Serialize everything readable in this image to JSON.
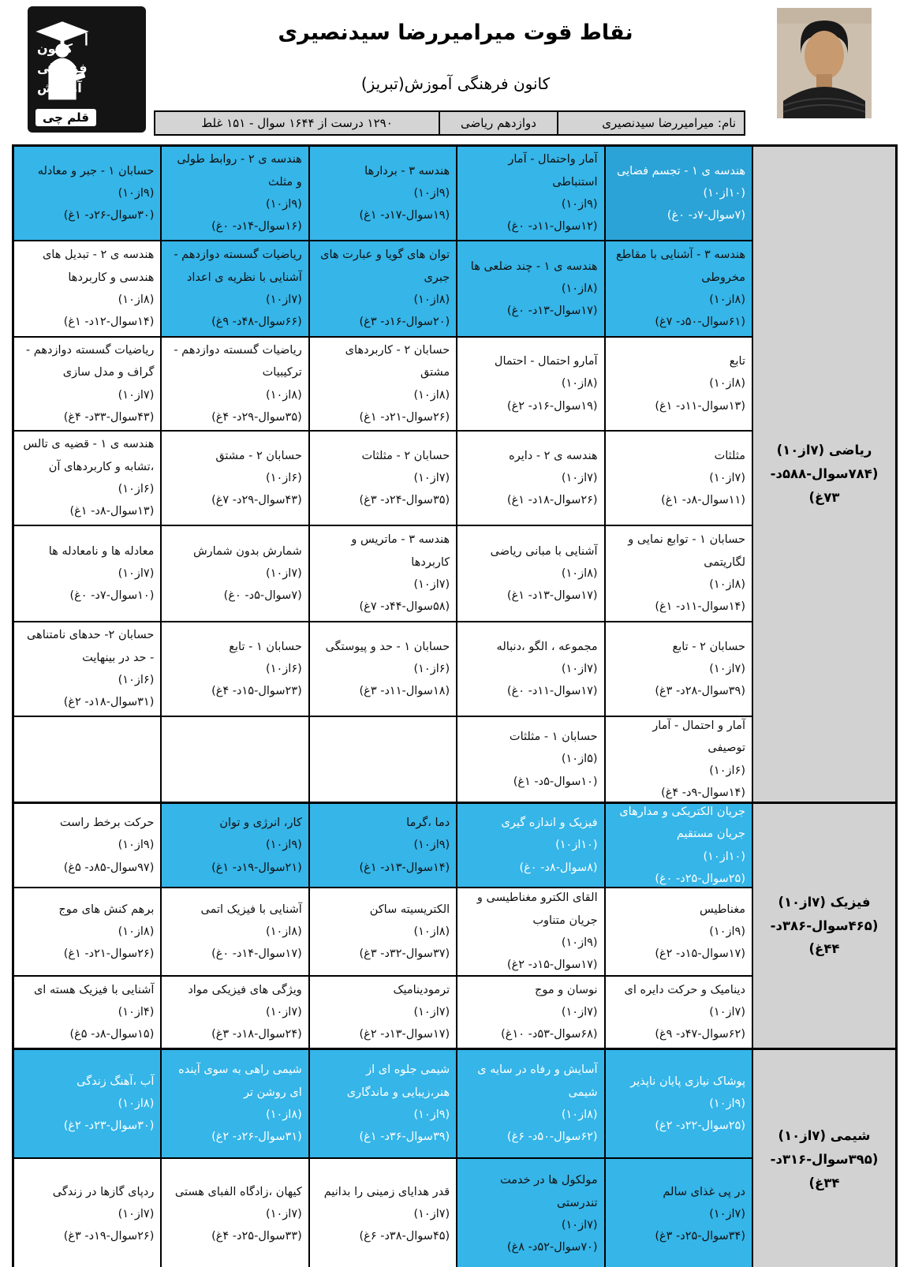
{
  "page": {
    "title": "نقاط قوت میرامیررضا سیدنصیری",
    "subtitle": "کانون فرهنگی آموزش(تبریز)"
  },
  "logo": {
    "org_lines": [
      "کانون",
      "فرهنگی",
      "آموزش"
    ],
    "brand": "قلم چی"
  },
  "info_bar": {
    "name": "نام: میرامیررضا سیدنصیری",
    "grade": "دوازدهم ریاضی",
    "summary": "۱۲۹۰ درست از ۱۶۴۴ سوال - ۱۵۱ غلط"
  },
  "colors": {
    "highlight": "#35b5e8",
    "highlight_dark": "#2ba3d7",
    "section_bg": "#d2d2d2",
    "info_bg": "#d4d4d4",
    "border": "#000000"
  },
  "sections": [
    {
      "id": "math",
      "label": "ریاضی (۷از۱۰)",
      "label_stats": "(۷۸۴سوال-۵۸۸د- ۷۳غ)",
      "rows": [
        [
          {
            "title": "هندسه ی ۱ - تجسم فضایی",
            "score": "(۱۰از۱۰)",
            "stats": "(۷سوال-۷د- ۰غ)",
            "hl": true,
            "dark": true,
            "white_text": true
          },
          {
            "title": "آمار واحتمال - آمار استنباطی",
            "score": "(۹از۱۰)",
            "stats": "(۱۲سوال-۱۱د- ۰غ)",
            "hl": true
          },
          {
            "title": "هندسه ۳ - بردارها",
            "score": "(۹از۱۰)",
            "stats": "(۱۹سوال-۱۷د- ۱غ)",
            "hl": true
          },
          {
            "title": "هندسه ی ۲ - روابط طولی و مثلث",
            "score": "(۹از۱۰)",
            "stats": "(۱۶سوال-۱۴د- ۰غ)",
            "hl": true
          },
          {
            "title": "حسابان ۱ - جبر و معادله",
            "score": "(۹از۱۰)",
            "stats": "(۳۰سوال-۲۶د- ۱غ)",
            "hl": true
          }
        ],
        [
          {
            "title": "هندسه ۳ - آشنایی با مقاطع مخروطی",
            "score": "(۸از۱۰)",
            "stats": "(۶۱سوال-۵۰د- ۷غ)",
            "hl": true
          },
          {
            "title": "هندسه ی ۱ - چند ضلعی ها",
            "score": "(۸از۱۰)",
            "stats": "(۱۷سوال-۱۳د- ۰غ)",
            "hl": true
          },
          {
            "title": "توان های گویا و عبارت های جبری",
            "score": "(۸از۱۰)",
            "stats": "(۲۰سوال-۱۶د- ۳غ)",
            "hl": true
          },
          {
            "title": "ریاضیات گسسته دوازدهم - آشنایی با نظریه ی اعداد",
            "score": "(۷از۱۰)",
            "stats": "(۶۶سوال-۴۸د- ۹غ)",
            "hl": true
          },
          {
            "title": "هندسه ی ۲ - تبدیل های هندسی و کاربردها",
            "score": "(۸از۱۰)",
            "stats": "(۱۴سوال-۱۲د- ۱غ)"
          }
        ],
        [
          {
            "title": "تابع",
            "score": "(۸از۱۰)",
            "stats": "(۱۳سوال-۱۱د- ۱غ)"
          },
          {
            "title": "آمارو احتمال - احتمال",
            "score": "(۸از۱۰)",
            "stats": "(۱۹سوال-۱۶د- ۲غ)"
          },
          {
            "title": "حسابان ۲ - کاربردهای مشتق",
            "score": "(۸از۱۰)",
            "stats": "(۲۶سوال-۲۱د- ۱غ)"
          },
          {
            "title": "ریاضیات گسسته دوازدهم - ترکیبیات",
            "score": "(۸از۱۰)",
            "stats": "(۳۵سوال-۲۹د- ۴غ)"
          },
          {
            "title": "ریاضیات گسسته دوازدهم - گراف و مدل سازی",
            "score": "(۷از۱۰)",
            "stats": "(۴۳سوال-۳۳د- ۴غ)"
          }
        ],
        [
          {
            "title": "مثلثات",
            "score": "(۷از۱۰)",
            "stats": "(۱۱سوال-۸د- ۱غ)"
          },
          {
            "title": "هندسه ی ۲ - دایره",
            "score": "(۷از۱۰)",
            "stats": "(۲۶سوال-۱۸د- ۱غ)"
          },
          {
            "title": "حسابان ۲ - مثلثات",
            "score": "(۷از۱۰)",
            "stats": "(۳۵سوال-۲۴د- ۳غ)"
          },
          {
            "title": "حسابان ۲ - مشتق",
            "score": "(۶از۱۰)",
            "stats": "(۴۳سوال-۲۹د- ۷غ)"
          },
          {
            "title": "هندسه ی ۱ - قضیه ی تالس ،تشابه و کاربردهای آن",
            "score": "(۶از۱۰)",
            "stats": "(۱۳سوال-۸د- ۱غ)"
          }
        ],
        [
          {
            "title": "حسابان ۱ - توابع نمایی و لگاریتمی",
            "score": "(۸از۱۰)",
            "stats": "(۱۴سوال-۱۱د- ۱غ)"
          },
          {
            "title": "آشنایی با مبانی ریاضی",
            "score": "(۸از۱۰)",
            "stats": "(۱۷سوال-۱۳د- ۱غ)"
          },
          {
            "title": "هندسه ۳ - ماتریس و کاربردها",
            "score": "(۷از۱۰)",
            "stats": "(۵۸سوال-۴۴د- ۷غ)"
          },
          {
            "title": "شمارش بدون شمارش",
            "score": "(۷از۱۰)",
            "stats": "(۷سوال-۵د- ۰غ)"
          },
          {
            "title": "معادله ها و نامعادله ها",
            "score": "(۷از۱۰)",
            "stats": "(۱۰سوال-۷د- ۰غ)"
          }
        ],
        [
          {
            "title": "حسابان ۲ - تابع",
            "score": "(۷از۱۰)",
            "stats": "(۳۹سوال-۲۸د- ۳غ)"
          },
          {
            "title": "مجموعه ، الگو ،دنباله",
            "score": "(۷از۱۰)",
            "stats": "(۱۷سوال-۱۱د- ۰غ)"
          },
          {
            "title": "حسابان ۱ - حد و پیوستگی",
            "score": "(۶از۱۰)",
            "stats": "(۱۸سوال-۱۱د- ۳غ)"
          },
          {
            "title": "حسابان ۱ - تابع",
            "score": "(۶از۱۰)",
            "stats": "(۲۳سوال-۱۵د- ۴غ)"
          },
          {
            "title": "حسابان ۲- حدهای نامتناهی - حد در بینهایت",
            "score": "(۶از۱۰)",
            "stats": "(۳۱سوال-۱۸د- ۲غ)"
          }
        ],
        [
          {
            "title": "آمار و احتمال - آمار توصیفی",
            "score": "(۶از۱۰)",
            "stats": "(۱۴سوال-۹د- ۴غ)"
          },
          {
            "title": "حسابان ۱ - مثلثات",
            "score": "(۵از۱۰)",
            "stats": "(۱۰سوال-۵د- ۱غ)"
          },
          null,
          null,
          null
        ]
      ]
    },
    {
      "id": "physics",
      "label": "فیزیک (۷از۱۰)",
      "label_stats": "(۴۶۵سوال-۳۸۶د- ۴۴غ)",
      "rows": [
        [
          {
            "title": "جریان الکتریکی و مدارهای جریان مستقیم",
            "score": "(۱۰از۱۰)",
            "stats": "(۲۵سوال-۲۵د- ۰غ)",
            "hl": true,
            "white_text": true
          },
          {
            "title": "فیزیک و اندازه گیری",
            "score": "(۱۰از۱۰)",
            "stats": "(۸سوال-۸د- ۰غ)",
            "hl": true,
            "white_text": true
          },
          {
            "title": "دما ،گرما",
            "score": "(۹از۱۰)",
            "stats": "(۱۴سوال-۱۳د- ۱غ)",
            "hl": true
          },
          {
            "title": "کار، انرژی و توان",
            "score": "(۹از۱۰)",
            "stats": "(۲۱سوال-۱۹د- ۱غ)",
            "hl": true
          },
          {
            "title": "حرکت برخط راست",
            "score": "(۹از۱۰)",
            "stats": "(۹۷سوال-۸۵د- ۵غ)"
          }
        ],
        [
          {
            "title": "مغناطیس",
            "score": "(۹از۱۰)",
            "stats": "(۱۷سوال-۱۵د- ۲غ)"
          },
          {
            "title": "القای الکترو مغناطیسی و جریان متناوب",
            "score": "(۹از۱۰)",
            "stats": "(۱۷سوال-۱۵د- ۲غ)"
          },
          {
            "title": "الکتریسیته ساکن",
            "score": "(۸از۱۰)",
            "stats": "(۳۷سوال-۳۲د- ۳غ)"
          },
          {
            "title": "آشنایی با فیزیک اتمی",
            "score": "(۸از۱۰)",
            "stats": "(۱۷سوال-۱۴د- ۰غ)"
          },
          {
            "title": "برهم کنش های موج",
            "score": "(۸از۱۰)",
            "stats": "(۲۶سوال-۲۱د- ۱غ)"
          }
        ],
        [
          {
            "title": "دینامیک و حرکت دایره ای",
            "score": "(۷از۱۰)",
            "stats": "(۶۲سوال-۴۷د- ۹غ)"
          },
          {
            "title": "نوسان و موج",
            "score": "(۷از۱۰)",
            "stats": "(۶۸سوال-۵۳د- ۱۰غ)"
          },
          {
            "title": "ترمودینامیک",
            "score": "(۷از۱۰)",
            "stats": "(۱۷سوال-۱۳د- ۲غ)"
          },
          {
            "title": "ویژگی های فیزیکی مواد",
            "score": "(۷از۱۰)",
            "stats": "(۲۴سوال-۱۸د- ۳غ)"
          },
          {
            "title": "آشنایی با فیزیک هسته ای",
            "score": "(۴از۱۰)",
            "stats": "(۱۵سوال-۸د- ۵غ)"
          }
        ]
      ]
    },
    {
      "id": "chemistry",
      "label": "شیمی (۷از۱۰)",
      "label_stats": "(۳۹۵سوال-۳۱۶د- ۳۴غ)",
      "rows": [
        [
          {
            "title": "پوشاک نیازی پایان ناپذیر",
            "score": "(۹از۱۰)",
            "stats": "(۲۵سوال-۲۲د- ۲غ)",
            "hl": true,
            "white_text": true
          },
          {
            "title": "آسایش و رفاه در سایه ی شیمی",
            "score": "(۸از۱۰)",
            "stats": "(۶۲سوال-۵۰د- ۶غ)",
            "hl": true,
            "white_text": true
          },
          {
            "title": "شیمی جلوه ای از هنر،زیبایی و ماندگاری",
            "score": "(۹از۱۰)",
            "stats": "(۳۹سوال-۳۶د- ۱غ)",
            "hl": true,
            "white_text": true
          },
          {
            "title": "شیمی راهی به سوی آینده ای روشن تر",
            "score": "(۸از۱۰)",
            "stats": "(۳۱سوال-۲۶د- ۲غ)",
            "hl": true,
            "white_text": true
          },
          {
            "title": "آب ،آهنگ زندگی",
            "score": "(۸از۱۰)",
            "stats": "(۳۰سوال-۲۳د- ۲غ)",
            "hl": true,
            "white_text": true
          }
        ],
        [
          {
            "title": "در پی غذای سالم",
            "score": "(۷از۱۰)",
            "stats": "(۳۴سوال-۲۵د- ۳غ)",
            "hl": true
          },
          {
            "title": "مولکول ها در خدمت تندرستی",
            "score": "(۷از۱۰)",
            "stats": "(۷۰سوال-۵۲د- ۸غ)",
            "hl": true
          },
          {
            "title": "قدر هدایای زمینی را بدانیم",
            "score": "(۷از۱۰)",
            "stats": "(۴۵سوال-۳۸د- ۶غ)"
          },
          {
            "title": "کیهان ،زادگاه الفبای هستی",
            "score": "(۷از۱۰)",
            "stats": "(۳۳سوال-۲۵د- ۴غ)"
          },
          {
            "title": "ردپای گازها در زندگی",
            "score": "(۷از۱۰)",
            "stats": "(۲۶سوال-۱۹د- ۳غ)"
          }
        ]
      ]
    }
  ]
}
